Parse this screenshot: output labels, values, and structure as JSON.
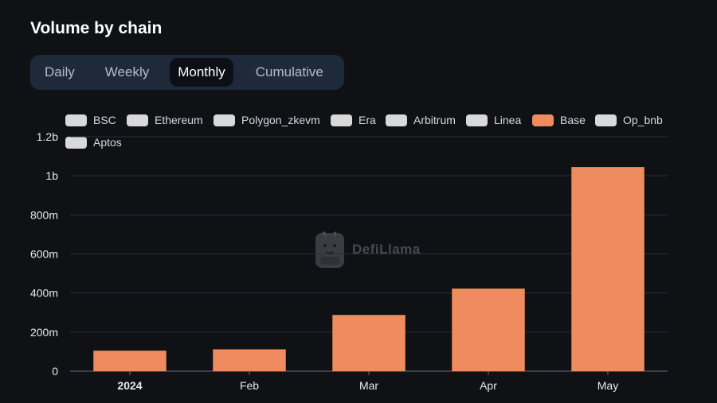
{
  "title": "Volume by chain",
  "tabs": [
    {
      "label": "Daily",
      "active": false
    },
    {
      "label": "Weekly",
      "active": false
    },
    {
      "label": "Monthly",
      "active": true
    },
    {
      "label": "Cumulative",
      "active": false
    }
  ],
  "legend": [
    {
      "label": "BSC",
      "color": "#d9d9d9"
    },
    {
      "label": "Ethereum",
      "color": "#d9d9d9"
    },
    {
      "label": "Polygon_zkevm",
      "color": "#d9d9d9"
    },
    {
      "label": "Era",
      "color": "#d9d9d9"
    },
    {
      "label": "Arbitrum",
      "color": "#d9d9d9"
    },
    {
      "label": "Linea",
      "color": "#d9d9d9"
    },
    {
      "label": "Base",
      "color": "#ee8c5f"
    },
    {
      "label": "Op_bnb",
      "color": "#d9d9d9"
    },
    {
      "label": "Aptos",
      "color": "#d9d9d9"
    }
  ],
  "watermark": {
    "text": "DefiLlama",
    "icon": "llama-icon"
  },
  "chart_data": {
    "type": "bar",
    "categories": [
      "2024",
      "Feb",
      "Mar",
      "Apr",
      "May"
    ],
    "series": [
      {
        "name": "Base",
        "color": "#ee8c5f",
        "values": [
          105000000,
          112000000,
          288000000,
          423000000,
          1045000000
        ]
      }
    ],
    "ylim": [
      0,
      1200000000
    ],
    "yticks": [
      0,
      200000000,
      400000000,
      600000000,
      800000000,
      1000000000,
      1200000000
    ],
    "ytick_labels": [
      "0",
      "200m",
      "400m",
      "600m",
      "800m",
      "1b",
      "1.2b"
    ],
    "bold_categories": [
      "2024"
    ],
    "grid": true,
    "legend_position": "top"
  }
}
